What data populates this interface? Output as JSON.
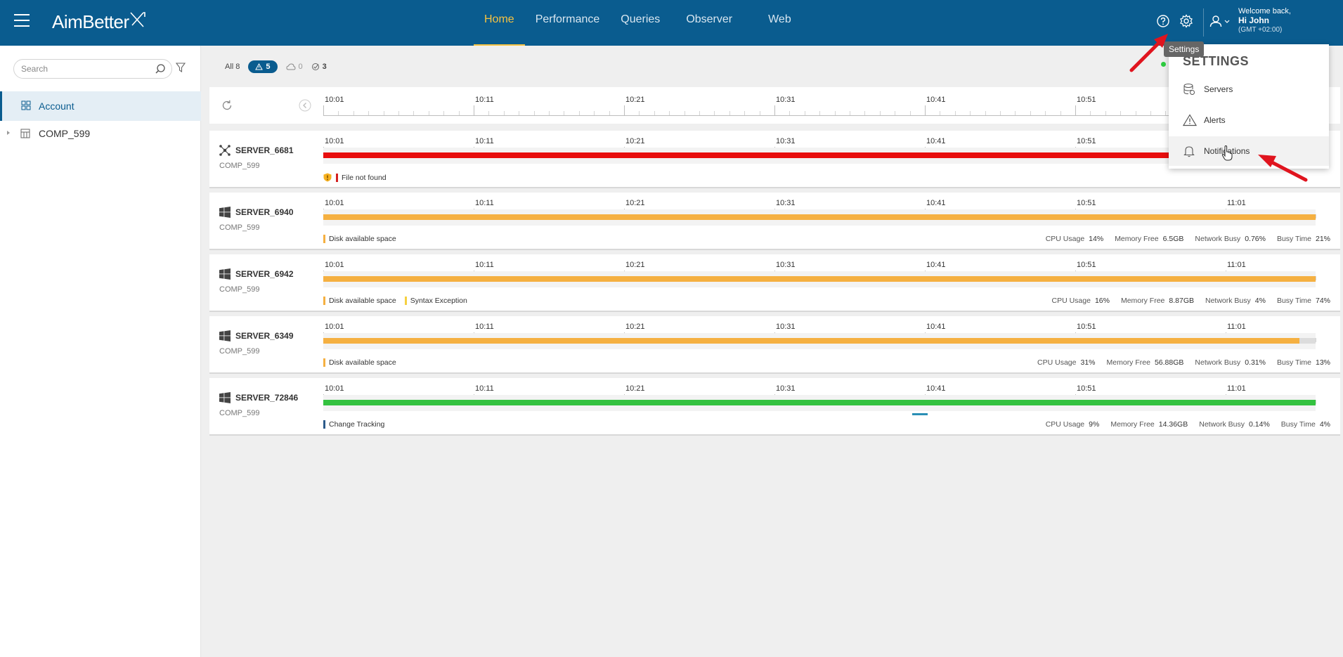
{
  "header": {
    "logo": "AimBetter",
    "nav": [
      {
        "label": "Home",
        "active": true
      },
      {
        "label": "Performance",
        "active": false
      },
      {
        "label": "Queries",
        "active": false
      },
      {
        "label": "Observer",
        "active": false
      },
      {
        "label": "Web",
        "active": false
      }
    ],
    "welcome": "Welcome back,",
    "user_name": "Hi John",
    "timezone": "(GMT +02:00)",
    "tooltip": "Settings",
    "accent_color": "#f5c242",
    "bg_color": "#0a5c8f"
  },
  "sidebar": {
    "search_placeholder": "Search",
    "items": [
      {
        "label": "Account",
        "selected": true
      },
      {
        "label": "COMP_599",
        "selected": false
      }
    ]
  },
  "filters": {
    "all_label": "All 8",
    "alerts_count": "5",
    "cloud_count": "0",
    "check_count": "3"
  },
  "timeline": {
    "ticks": [
      "10:01",
      "10:11",
      "10:21",
      "10:31",
      "10:41",
      "10:51",
      "11:01"
    ]
  },
  "servers": [
    {
      "name": "SERVER_6681",
      "company": "COMP_599",
      "os_icon": "network-icon",
      "status_color": "#e80e0e",
      "fill": 1.0,
      "alerts": [
        {
          "label": "File not found",
          "color": "#d32020"
        }
      ],
      "metrics": []
    },
    {
      "name": "SERVER_6940",
      "company": "COMP_599",
      "os_icon": "windows-icon",
      "status_color": "#f5b041",
      "fill": 1.0,
      "alerts": [
        {
          "label": "Disk available space",
          "color": "#f5b041"
        }
      ],
      "metrics": [
        {
          "label": "CPU Usage",
          "value": "14%"
        },
        {
          "label": "Memory Free",
          "value": "6.5GB"
        },
        {
          "label": "Network Busy",
          "value": "0.76%"
        },
        {
          "label": "Busy Time",
          "value": "21%"
        }
      ]
    },
    {
      "name": "SERVER_6942",
      "company": "COMP_599",
      "os_icon": "windows-icon",
      "status_color": "#f5b041",
      "fill": 1.0,
      "alerts": [
        {
          "label": "Disk available space",
          "color": "#f5b041"
        },
        {
          "label": "Syntax Exception",
          "color": "#f5d041"
        }
      ],
      "metrics": [
        {
          "label": "CPU Usage",
          "value": "16%"
        },
        {
          "label": "Memory Free",
          "value": "8.87GB"
        },
        {
          "label": "Network Busy",
          "value": "4%"
        },
        {
          "label": "Busy Time",
          "value": "74%"
        }
      ]
    },
    {
      "name": "SERVER_6349",
      "company": "COMP_599",
      "os_icon": "windows-icon",
      "status_color": "#f5b041",
      "fill": 0.984,
      "alerts": [
        {
          "label": "Disk available space",
          "color": "#f5b041"
        }
      ],
      "metrics": [
        {
          "label": "CPU Usage",
          "value": "31%"
        },
        {
          "label": "Memory Free",
          "value": "56.88GB"
        },
        {
          "label": "Network Busy",
          "value": "0.31%"
        },
        {
          "label": "Busy Time",
          "value": "13%"
        }
      ]
    },
    {
      "name": "SERVER_72846",
      "company": "COMP_599",
      "os_icon": "windows-icon",
      "status_color": "#34c240",
      "fill": 1.0,
      "alerts": [
        {
          "label": "Change Tracking",
          "color": "#2c5a8a"
        }
      ],
      "metrics": [
        {
          "label": "CPU Usage",
          "value": "9%"
        },
        {
          "label": "Memory Free",
          "value": "14.36GB"
        },
        {
          "label": "Network Busy",
          "value": "0.14%"
        },
        {
          "label": "Busy Time",
          "value": "4%"
        }
      ]
    }
  ],
  "settings_menu": {
    "title": "SETTINGS",
    "items": [
      {
        "label": "Servers",
        "icon": "servers-icon"
      },
      {
        "label": "Alerts",
        "icon": "alert-triangle-icon"
      },
      {
        "label": "Notifications",
        "icon": "bell-icon"
      }
    ]
  }
}
